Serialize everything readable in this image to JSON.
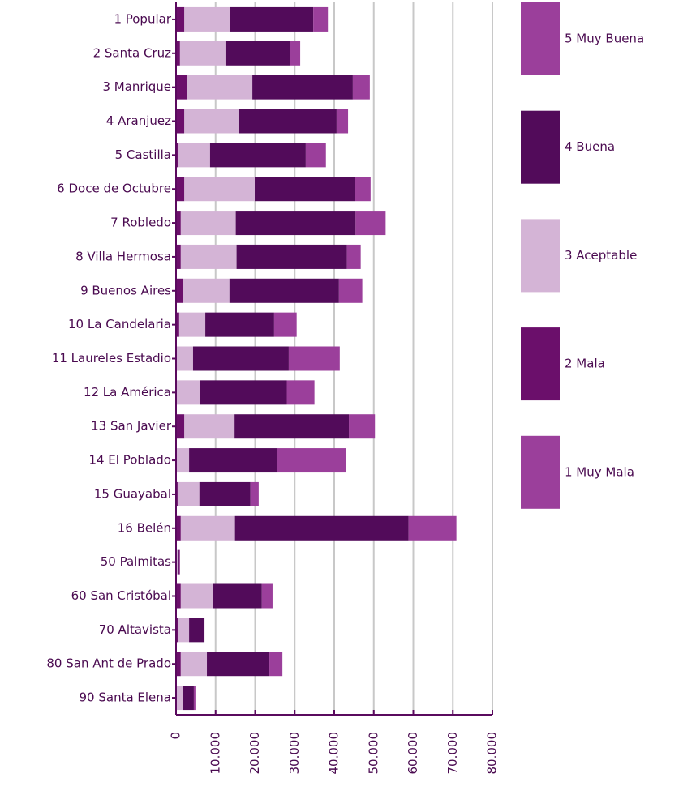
{
  "chart_data": {
    "type": "bar",
    "orientation": "horizontal",
    "stacked": true,
    "categories": [
      "1 Popular",
      "2 Santa Cruz",
      "3 Manrique",
      "4 Aranjuez",
      "5 Castilla",
      "6 Doce de Octubre",
      "7 Robledo",
      "8 Villa Hermosa",
      "9 Buenos Aires",
      "10 La Candelaria",
      "11 Laureles Estadio",
      "12 La América",
      "13 San Javier",
      "14 El Poblado",
      "15 Guayabal",
      "16 Belén",
      "50 Palmitas",
      "60 San Cristóbal",
      "70 Altavista",
      "80 San Ant de Prado",
      "90 Santa Elena"
    ],
    "series": [
      {
        "name": "1 Muy Mala",
        "color": "#9b3f9b",
        "values": [
          200,
          100,
          200,
          200,
          100,
          200,
          100,
          100,
          200,
          100,
          100,
          100,
          200,
          100,
          100,
          100,
          50,
          100,
          100,
          100,
          50
        ]
      },
      {
        "name": "2 Mala",
        "color": "#6b0f6b",
        "values": [
          1900,
          900,
          2700,
          1900,
          500,
          1900,
          1100,
          1100,
          1600,
          700,
          100,
          100,
          1900,
          100,
          300,
          1100,
          150,
          1100,
          500,
          1100,
          150
        ]
      },
      {
        "name": "3 Aceptable",
        "color": "#d4b4d6",
        "values": [
          11500,
          11500,
          16400,
          13700,
          8000,
          17800,
          13900,
          14100,
          11700,
          6600,
          4100,
          5900,
          12700,
          3100,
          5500,
          13700,
          200,
          8200,
          2700,
          6600,
          1600
        ]
      },
      {
        "name": "4 Buena",
        "color": "#520b5a",
        "values": [
          21100,
          16400,
          25400,
          24800,
          24200,
          25400,
          30300,
          27900,
          27700,
          17400,
          24200,
          21900,
          28900,
          22300,
          12900,
          43900,
          400,
          12300,
          3700,
          15800,
          2700
        ]
      },
      {
        "name": "5 Muy Buena",
        "color": "#9b3f9b",
        "values": [
          3700,
          2500,
          4300,
          2900,
          5100,
          3900,
          7600,
          3500,
          5900,
          5700,
          12900,
          7000,
          6600,
          17400,
          2100,
          12100,
          200,
          2700,
          200,
          3300,
          400
        ]
      }
    ],
    "xlim": [
      0,
      80000
    ],
    "xticks": [
      0,
      {
        "value": 10000,
        "label": "10.000"
      },
      {
        "value": 20000,
        "label": "20.000"
      },
      {
        "value": 30000,
        "label": "30.000"
      },
      {
        "value": 40000,
        "label": "40.000"
      },
      {
        "value": 50000,
        "label": "50.000"
      },
      {
        "value": 60000,
        "label": "60.000"
      },
      {
        "value": 70000,
        "label": "70.000"
      },
      {
        "value": 80000,
        "label": "80.000"
      }
    ],
    "grid": true,
    "legend": "right"
  }
}
